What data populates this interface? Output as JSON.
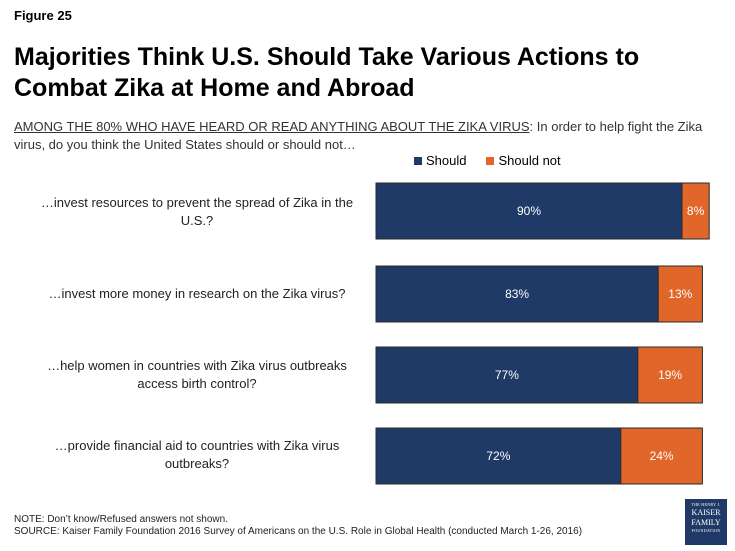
{
  "figure_label": "Figure 25",
  "title": "Majorities Think U.S. Should Take Various Actions to Combat Zika at Home and Abroad",
  "subtitle_emph": "AMONG THE 80% WHO HAVE HEARD OR READ ANYTHING ABOUT THE ZIKA VIRUS",
  "subtitle_rest": ": In order to help fight the Zika virus, do you think the United States should or should not…",
  "chart_data": {
    "type": "bar",
    "orientation": "horizontal",
    "stacked": true,
    "categories": [
      "…invest resources to prevent the spread of Zika in the U.S.?",
      "…invest more money in research on the Zika virus?",
      "…help women in countries with Zika virus outbreaks access birth control?",
      "…provide financial aid to countries with Zika virus outbreaks?"
    ],
    "series": [
      {
        "name": "Should",
        "values": [
          90,
          83,
          77,
          72
        ],
        "labels": [
          "90%",
          "83%",
          "77%",
          "72%"
        ],
        "color": "#1f3a66"
      },
      {
        "name": "Should not",
        "values": [
          8,
          13,
          19,
          24
        ],
        "labels": [
          "8%",
          "13%",
          "19%",
          "24%"
        ],
        "color": "#e0662a"
      }
    ],
    "xlim": [
      0,
      100
    ],
    "legend_position": "top",
    "grid": false
  },
  "footer": {
    "note": "NOTE: Don’t know/Refused answers not shown.",
    "source": "SOURCE: Kaiser Family Foundation 2016 Survey of Americans on the U.S. Role in Global Health (conducted March 1-26, 2016)"
  },
  "logo": {
    "line1": "THE HENRY J.",
    "line2a": "KAISER",
    "line2b": "FAMILY",
    "line3": "FOUNDATION"
  }
}
